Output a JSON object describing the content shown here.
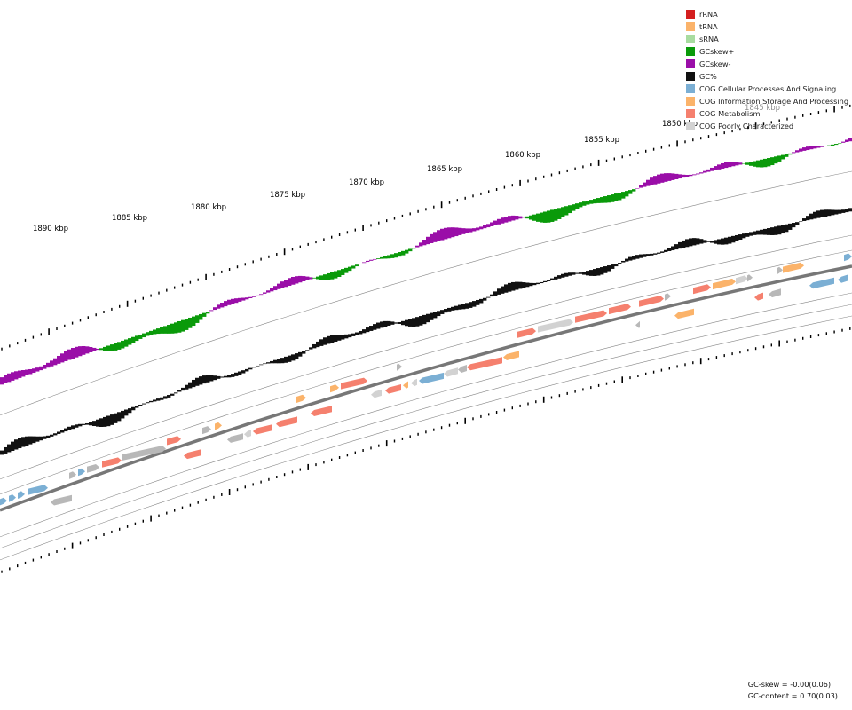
{
  "legend": [
    {
      "label": "rRNA",
      "color": "#d41f1f"
    },
    {
      "label": "tRNA",
      "color": "#fbb36a"
    },
    {
      "label": "sRNA",
      "color": "#a8dca0"
    },
    {
      "label": "GCskew+",
      "color": "#0a9a0a"
    },
    {
      "label": "GCskew-",
      "color": "#9a0ea8"
    },
    {
      "label": "GC%",
      "color": "#111111"
    },
    {
      "label": "COG Cellular Processes And Signaling",
      "color": "#7bafd4"
    },
    {
      "label": "COG Information Storage And Processing",
      "color": "#fbb36a"
    },
    {
      "label": "COG Metabolism",
      "color": "#f5806e"
    },
    {
      "label": "COG Poorly Characterized",
      "color": "#d2d2d2"
    }
  ],
  "ticks": [
    {
      "label": "1845 kbp"
    },
    {
      "label": "1850 kbp"
    },
    {
      "label": "1855 kbp"
    },
    {
      "label": "1860 kbp"
    },
    {
      "label": "1865 kbp"
    },
    {
      "label": "1870 kbp"
    },
    {
      "label": "1875 kbp"
    },
    {
      "label": "1880 kbp"
    },
    {
      "label": "1885 kbp"
    },
    {
      "label": "1890 kbp"
    }
  ],
  "stats": {
    "gc_skew": "GC-skew = -0.00(0.06)",
    "gc_content": "GC-content = 0.70(0.03)"
  }
}
